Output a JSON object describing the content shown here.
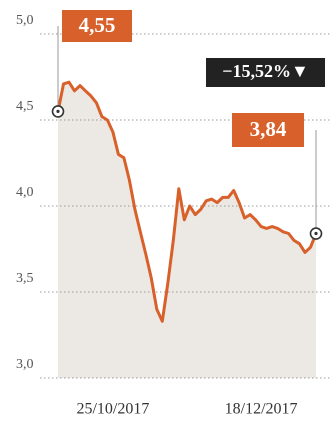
{
  "chart_data": {
    "type": "line",
    "categories": [
      null,
      null,
      null,
      null,
      null,
      null,
      null,
      null,
      null,
      null,
      "25/10/2017",
      null,
      null,
      null,
      null,
      null,
      null,
      null,
      null,
      null,
      null,
      null,
      null,
      null,
      null,
      null,
      null,
      null,
      null,
      null,
      null,
      null,
      null,
      null,
      null,
      null,
      null,
      "18/12/2017",
      null,
      null,
      null,
      null,
      null,
      null,
      null,
      null,
      null,
      null
    ],
    "series": [
      {
        "color": "#d8602a",
        "values": [
          4.55,
          4.71,
          4.72,
          4.67,
          4.7,
          4.67,
          4.64,
          4.6,
          4.52,
          4.5,
          4.43,
          4.3,
          4.28,
          4.15,
          3.98,
          3.85,
          3.72,
          3.58,
          3.4,
          3.33,
          3.55,
          3.8,
          4.1,
          3.92,
          4.0,
          3.95,
          3.98,
          4.03,
          4.04,
          4.02,
          4.05,
          4.05,
          4.09,
          4.02,
          3.93,
          3.95,
          3.92,
          3.88,
          3.87,
          3.88,
          3.87,
          3.85,
          3.84,
          3.8,
          3.78,
          3.73,
          3.76,
          3.84
        ],
        "value_labels": [
          "4,55",
          null,
          null,
          null,
          null,
          null,
          null,
          null,
          null,
          null,
          null,
          null,
          null,
          null,
          null,
          null,
          null,
          null,
          null,
          null,
          null,
          null,
          null,
          null,
          null,
          null,
          null,
          null,
          null,
          null,
          null,
          null,
          null,
          null,
          null,
          null,
          null,
          null,
          null,
          null,
          null,
          null,
          null,
          null,
          null,
          null,
          null,
          "3,84"
        ]
      }
    ],
    "annotation": "−15,52%▼",
    "ylim": [
      3.0,
      5.0
    ],
    "yticks": [
      {
        "value": 3.0,
        "label": "3,0"
      },
      {
        "value": 3.5,
        "label": "3,5"
      },
      {
        "value": 4.0,
        "label": "4,0"
      },
      {
        "value": 4.5,
        "label": "4,5"
      },
      {
        "value": 5.0,
        "label": "5,0"
      }
    ],
    "grid": true
  }
}
